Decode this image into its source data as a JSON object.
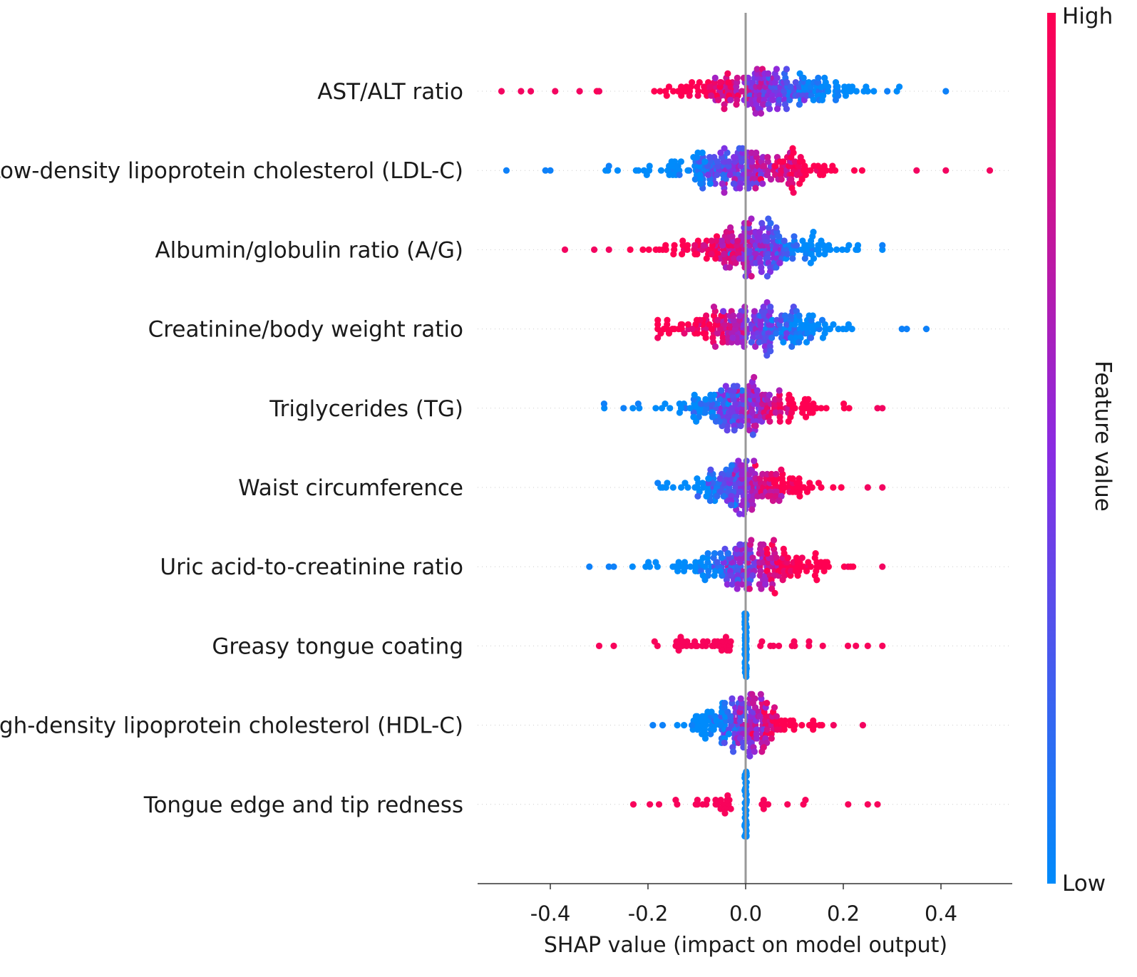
{
  "chart_data": {
    "type": "scatter",
    "subtype": "shap-beeswarm",
    "xlabel": "SHAP value (impact on model output)",
    "xlim": [
      -0.55,
      0.55
    ],
    "xticks": [
      -0.4,
      -0.2,
      0.0,
      0.2,
      0.4
    ],
    "xtick_labels": [
      "-0.4",
      "-0.2",
      "0.0",
      "0.2",
      "0.4"
    ],
    "zero_line": 0.0,
    "colorbar": {
      "label": "Feature value",
      "high_label": "High",
      "low_label": "Low",
      "high_color": "#ff0052",
      "mid_color": "#8a2be2",
      "low_color": "#008bfb"
    },
    "features": [
      {
        "name": "AST/ALT ratio",
        "min": -0.5,
        "max": 0.41,
        "spread": 0.45,
        "count": 240,
        "low_side": "right",
        "density_center": 0.04,
        "outliers": [
          -0.5,
          -0.46,
          -0.44,
          -0.39,
          -0.34,
          -0.3,
          0.29,
          0.41
        ]
      },
      {
        "name": "Low-density lipoprotein cholesterol (LDL-C)",
        "min": -0.49,
        "max": 0.5,
        "spread": 0.45,
        "count": 240,
        "low_side": "left",
        "density_center": 0.0,
        "outliers": [
          -0.49,
          -0.41,
          -0.4,
          -0.28,
          0.35,
          0.41,
          0.5
        ]
      },
      {
        "name": "Albumin/globulin ratio (A/G)",
        "min": -0.37,
        "max": 0.28,
        "spread": 0.4,
        "count": 240,
        "low_side": "right",
        "density_center": 0.02,
        "outliers": [
          -0.37,
          -0.31,
          -0.28,
          0.28
        ]
      },
      {
        "name": "Creatinine/body weight ratio",
        "min": -0.18,
        "max": 0.37,
        "spread": 0.4,
        "count": 240,
        "low_side": "right",
        "density_center": 0.01,
        "outliers": [
          -0.18,
          0.32,
          0.33,
          0.37
        ]
      },
      {
        "name": "Triglycerides (TG)",
        "min": -0.29,
        "max": 0.28,
        "spread": 0.35,
        "count": 220,
        "low_side": "left",
        "density_center": 0.0,
        "outliers": [
          -0.29,
          -0.25,
          -0.22,
          0.27,
          0.28
        ]
      },
      {
        "name": "Waist circumference",
        "min": -0.18,
        "max": 0.28,
        "spread": 0.3,
        "count": 200,
        "low_side": "left",
        "density_center": 0.0,
        "outliers": [
          -0.18,
          0.25,
          0.28
        ]
      },
      {
        "name": "Uric acid-to-creatinine ratio",
        "min": -0.32,
        "max": 0.28,
        "spread": 0.35,
        "count": 220,
        "low_side": "left",
        "density_center": 0.0,
        "outliers": [
          -0.32,
          -0.28,
          -0.27,
          0.21,
          0.28
        ]
      },
      {
        "name": "Greasy tongue coating",
        "min": -0.3,
        "max": 0.28,
        "spread": 0.0,
        "count": 120,
        "low_side": "zero",
        "density_center": 0.0,
        "outliers": [
          -0.3,
          -0.27,
          0.25,
          0.28
        ]
      },
      {
        "name": "High-density lipoprotein cholesterol (HDL-C)",
        "min": -0.19,
        "max": 0.24,
        "spread": 0.25,
        "count": 200,
        "low_side": "left",
        "density_center": 0.0,
        "outliers": [
          -0.19,
          -0.17,
          -0.11,
          0.18,
          0.24
        ]
      },
      {
        "name": "Tongue edge and tip redness",
        "min": -0.23,
        "max": 0.27,
        "spread": 0.0,
        "count": 80,
        "low_side": "zero",
        "density_center": 0.0,
        "outliers": [
          -0.23,
          0.21,
          0.25,
          0.27
        ]
      }
    ]
  }
}
